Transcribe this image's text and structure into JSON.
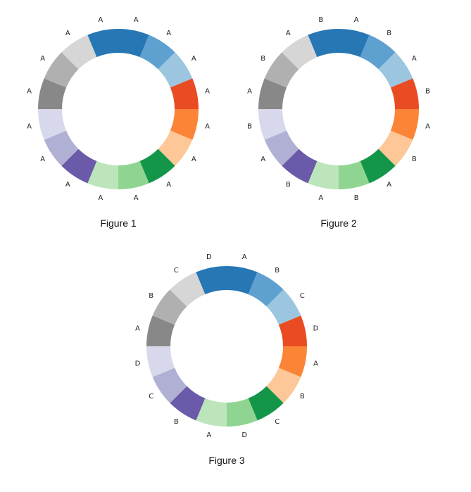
{
  "palette": [
    "#2777b4",
    "#5ea1d0",
    "#9cc6e0",
    "#e94b22",
    "#fb8437",
    "#fdc797",
    "#139648",
    "#8fd591",
    "#bde5bb",
    "#6b59a9",
    "#b0b0d4",
    "#d8d8ec",
    "#888888",
    "#b0b0b0",
    "#d6d6d6",
    "#2777b4"
  ],
  "figures": [
    {
      "caption": "Figure 1",
      "labels": [
        "A",
        "A",
        "A",
        "A",
        "A",
        "A",
        "A",
        "A",
        "A",
        "A",
        "A",
        "A",
        "A",
        "A",
        "A",
        "A"
      ]
    },
    {
      "caption": "Figure 2",
      "labels": [
        "A",
        "B",
        "A",
        "B",
        "A",
        "B",
        "A",
        "B",
        "A",
        "B",
        "A",
        "B",
        "A",
        "B",
        "A",
        "B"
      ]
    },
    {
      "caption": "Figure 3",
      "labels": [
        "A",
        "B",
        "C",
        "D",
        "A",
        "B",
        "C",
        "D",
        "A",
        "B",
        "C",
        "D",
        "A",
        "B",
        "C",
        "D"
      ]
    }
  ]
}
